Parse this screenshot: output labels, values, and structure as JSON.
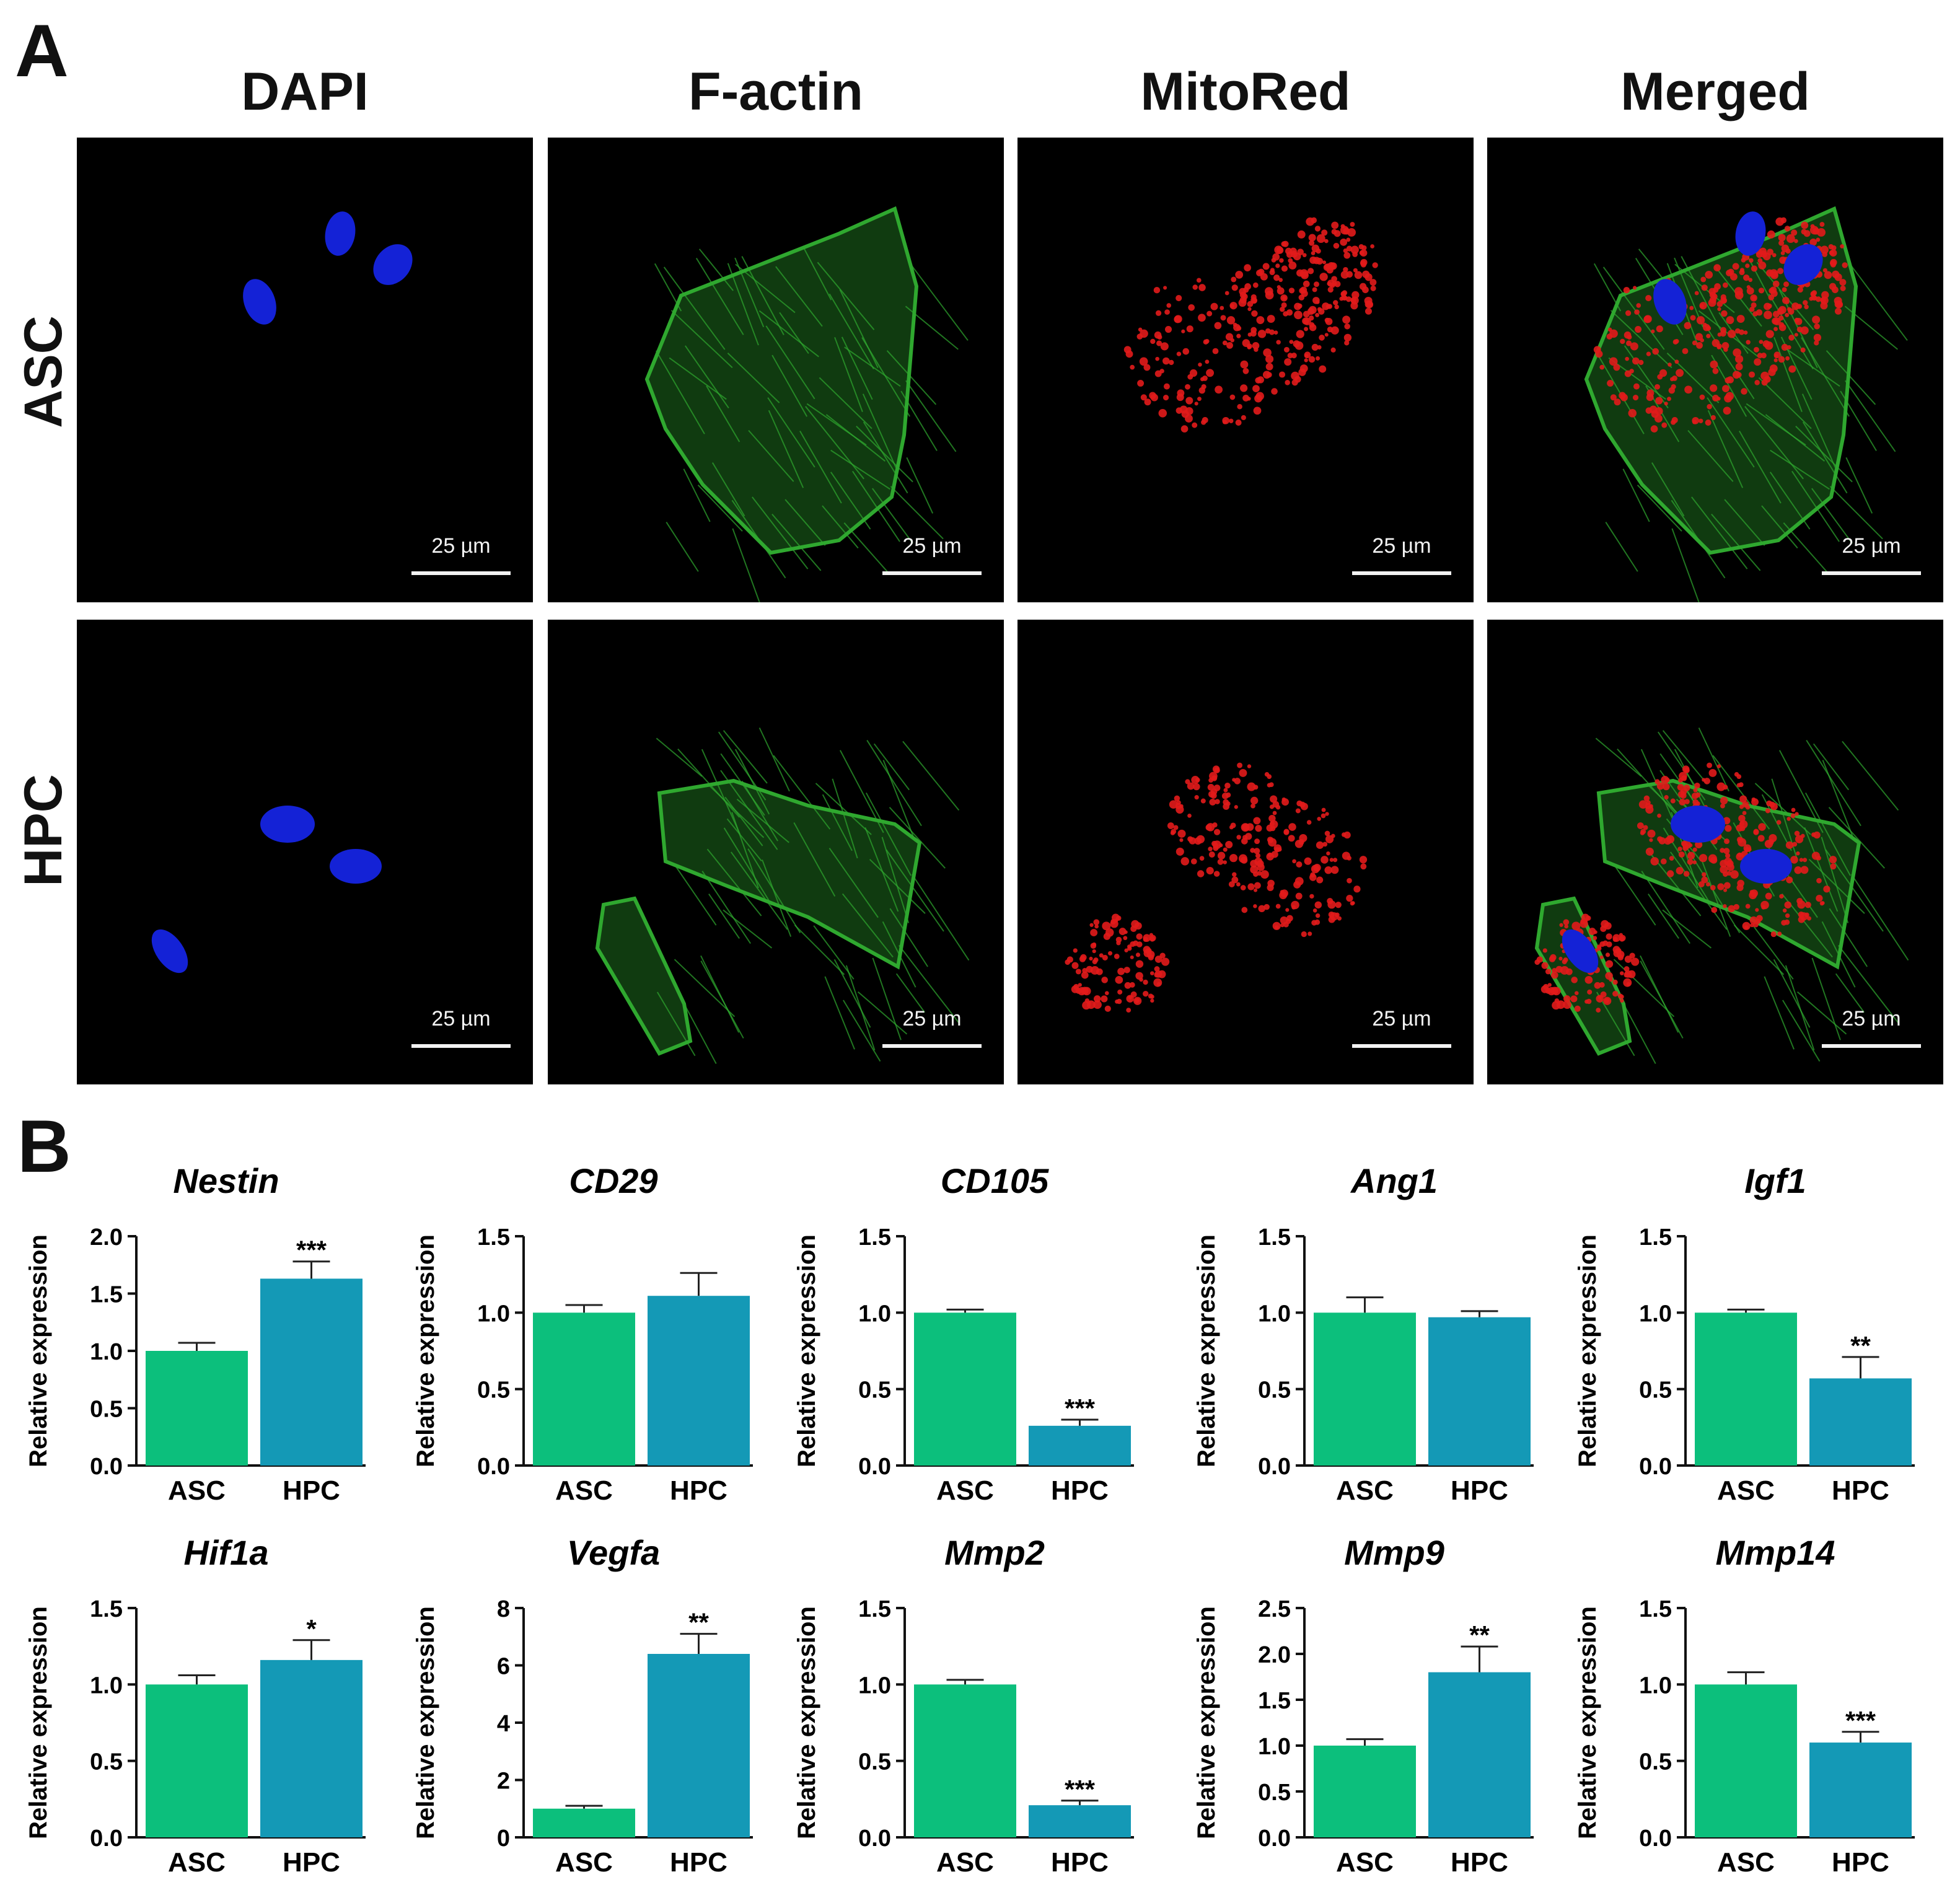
{
  "panel_a": {
    "letter": "A",
    "column_headers": [
      "DAPI",
      "F-actin",
      "MitoRed",
      "Merged"
    ],
    "row_headers": [
      "ASC",
      "HPC"
    ],
    "scale_label": "25 µm"
  },
  "panel_b": {
    "letter": "B"
  },
  "colors": {
    "asc_bar": "#0cbf7c",
    "hpc_bar": "#1499b6",
    "nucleus": "#1422d6",
    "actin": "#2fa82f",
    "mito": "#e21b1b"
  },
  "chart_data": [
    {
      "type": "bar",
      "title": "Nestin",
      "ylabel": "Relative expression",
      "categories": [
        "ASC",
        "HPC"
      ],
      "values": [
        1.0,
        1.63
      ],
      "errors": [
        0.07,
        0.15
      ],
      "significance": [
        "",
        "***"
      ],
      "ylim": [
        0,
        2.0
      ],
      "yticks": [
        "0.0",
        "0.5",
        "1.0",
        "1.5",
        "2.0"
      ]
    },
    {
      "type": "bar",
      "title": "CD29",
      "ylabel": "Relative expression",
      "categories": [
        "ASC",
        "HPC"
      ],
      "values": [
        1.0,
        1.11
      ],
      "errors": [
        0.05,
        0.15
      ],
      "significance": [
        "",
        ""
      ],
      "ylim": [
        0,
        1.5
      ],
      "yticks": [
        "0.0",
        "0.5",
        "1.0",
        "1.5"
      ]
    },
    {
      "type": "bar",
      "title": "CD105",
      "ylabel": "Relative expression",
      "categories": [
        "ASC",
        "HPC"
      ],
      "values": [
        1.0,
        0.26
      ],
      "errors": [
        0.02,
        0.04
      ],
      "significance": [
        "",
        "***"
      ],
      "ylim": [
        0,
        1.5
      ],
      "yticks": [
        "0.0",
        "0.5",
        "1.0",
        "1.5"
      ]
    },
    {
      "type": "bar",
      "title": "Ang1",
      "ylabel": "Relative expression",
      "categories": [
        "ASC",
        "HPC"
      ],
      "values": [
        1.0,
        0.97
      ],
      "errors": [
        0.1,
        0.04
      ],
      "significance": [
        "",
        ""
      ],
      "ylim": [
        0,
        1.5
      ],
      "yticks": [
        "0.0",
        "0.5",
        "1.0",
        "1.5"
      ]
    },
    {
      "type": "bar",
      "title": "Igf1",
      "ylabel": "Relative expression",
      "categories": [
        "ASC",
        "HPC"
      ],
      "values": [
        1.0,
        0.57
      ],
      "errors": [
        0.02,
        0.14
      ],
      "significance": [
        "",
        "**"
      ],
      "ylim": [
        0,
        1.5
      ],
      "yticks": [
        "0.0",
        "0.5",
        "1.0",
        "1.5"
      ]
    },
    {
      "type": "bar",
      "title": "Hif1a",
      "ylabel": "Relative expression",
      "categories": [
        "ASC",
        "HPC"
      ],
      "values": [
        1.0,
        1.16
      ],
      "errors": [
        0.06,
        0.13
      ],
      "significance": [
        "",
        "*"
      ],
      "ylim": [
        0,
        1.5
      ],
      "yticks": [
        "0.0",
        "0.5",
        "1.0",
        "1.5"
      ]
    },
    {
      "type": "bar",
      "title": "Vegfa",
      "ylabel": "Relative expression",
      "categories": [
        "ASC",
        "HPC"
      ],
      "values": [
        1.0,
        6.4
      ],
      "errors": [
        0.1,
        0.7
      ],
      "significance": [
        "",
        "**"
      ],
      "ylim": [
        0,
        8
      ],
      "yticks": [
        "0",
        "2",
        "4",
        "6",
        "8"
      ]
    },
    {
      "type": "bar",
      "title": "Mmp2",
      "ylabel": "Relative expression",
      "categories": [
        "ASC",
        "HPC"
      ],
      "values": [
        1.0,
        0.21
      ],
      "errors": [
        0.03,
        0.03
      ],
      "significance": [
        "",
        "***"
      ],
      "ylim": [
        0,
        1.5
      ],
      "yticks": [
        "0.0",
        "0.5",
        "1.0",
        "1.5"
      ]
    },
    {
      "type": "bar",
      "title": "Mmp9",
      "ylabel": "Relative expression",
      "categories": [
        "ASC",
        "HPC"
      ],
      "values": [
        1.0,
        1.8
      ],
      "errors": [
        0.07,
        0.28
      ],
      "significance": [
        "",
        "**"
      ],
      "ylim": [
        0,
        2.5
      ],
      "yticks": [
        "0.0",
        "0.5",
        "1.0",
        "1.5",
        "2.0",
        "2.5"
      ]
    },
    {
      "type": "bar",
      "title": "Mmp14",
      "ylabel": "Relative expression",
      "categories": [
        "ASC",
        "HPC"
      ],
      "values": [
        1.0,
        0.62
      ],
      "errors": [
        0.08,
        0.07
      ],
      "significance": [
        "",
        "***"
      ],
      "ylim": [
        0,
        1.5
      ],
      "yticks": [
        "0.0",
        "0.5",
        "1.0",
        "1.5"
      ]
    }
  ]
}
